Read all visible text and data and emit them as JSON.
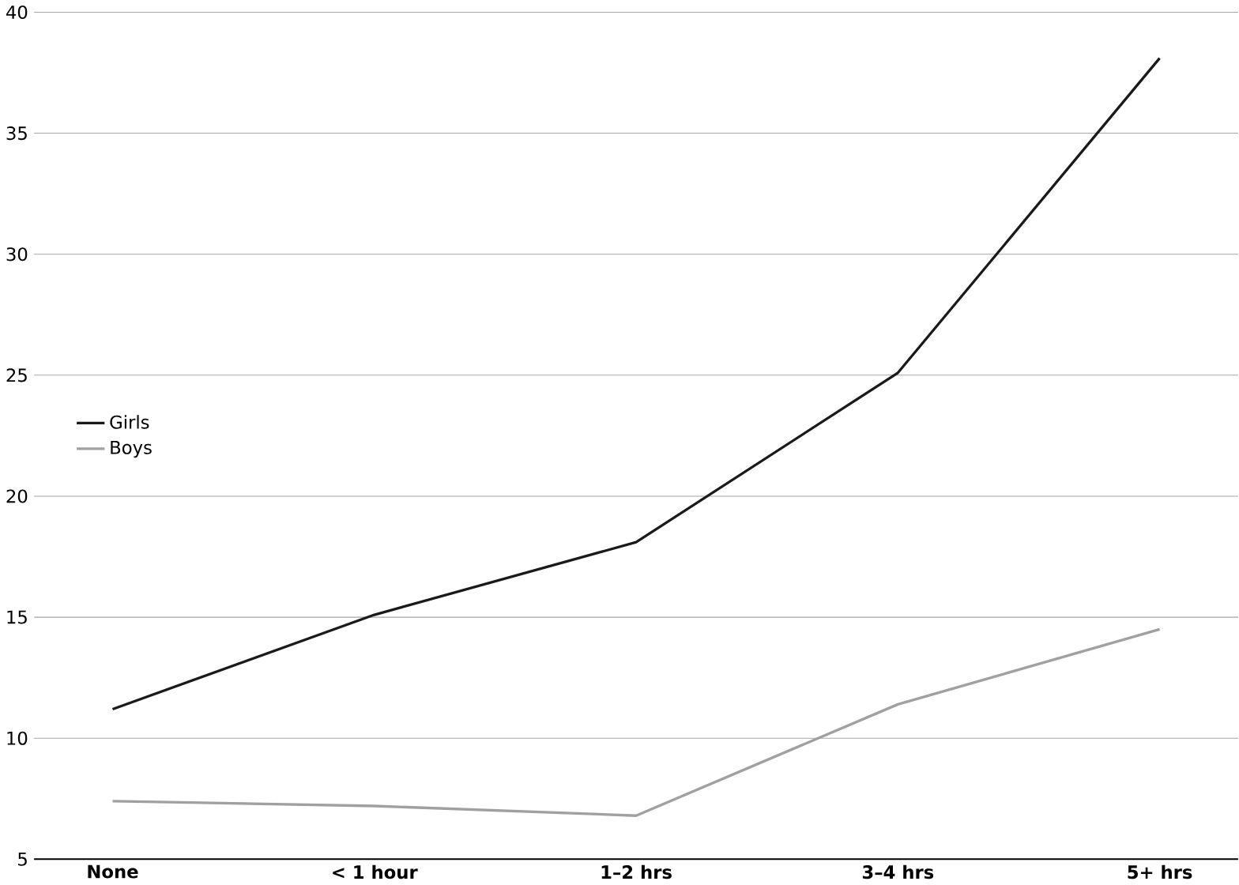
{
  "chart_data": {
    "type": "line",
    "categories": [
      "None",
      "< 1 hour",
      "1–2 hrs",
      "3–4 hrs",
      "5+ hrs"
    ],
    "series": [
      {
        "name": "Girls",
        "color": "#1a1a1a",
        "values": [
          11.2,
          15.1,
          18.1,
          25.1,
          38.1
        ]
      },
      {
        "name": "Boys",
        "color": "#a0a0a0",
        "values": [
          7.4,
          7.2,
          6.8,
          11.4,
          14.5
        ]
      }
    ],
    "ylim": [
      5,
      40
    ],
    "yticks": [
      5,
      10,
      15,
      20,
      25,
      30,
      35,
      40
    ],
    "grid": "y",
    "legend": "left",
    "marker": "none",
    "line_style": "solid"
  }
}
